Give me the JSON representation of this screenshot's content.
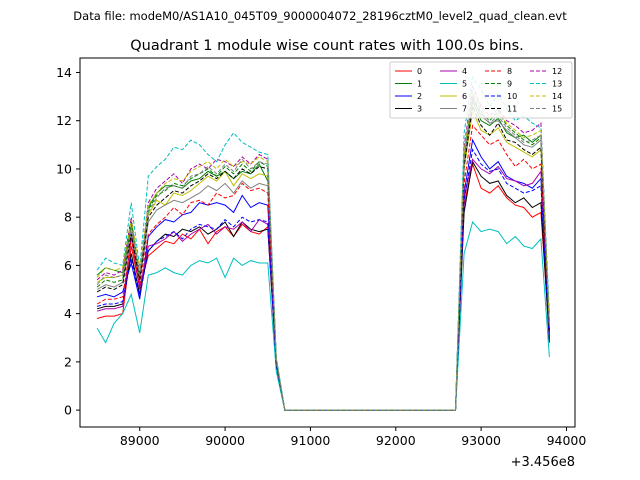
{
  "chart_data": {
    "type": "line",
    "suptitle": "Data file: modeM0/AS1A10_045T09_9000004072_28196cztM0_level2_quad_clean.evt",
    "title": "Quadrant 1 module wise count rates with 100.0s bins.",
    "xlabel": "",
    "ylabel": "",
    "offset_text": "+3.456e8",
    "xlim": [
      88300,
      94100
    ],
    "ylim": [
      -0.7,
      14.6
    ],
    "xticks": [
      89000,
      90000,
      91000,
      92000,
      93000,
      94000
    ],
    "yticks": [
      0,
      2,
      4,
      6,
      8,
      10,
      12,
      14
    ],
    "grid": false,
    "legend": {
      "placement": "top-right",
      "columns": 4
    },
    "x_seg1": [
      88500,
      88600,
      88700,
      88800,
      88900,
      89000,
      89100,
      89200,
      89300,
      89400,
      89500,
      89600,
      89700,
      89800,
      89900,
      90000,
      90100,
      90200,
      90300,
      90400,
      90500,
      90600,
      90700,
      90800
    ],
    "x_seg2": [
      92700,
      92800,
      92900,
      93000,
      93100,
      93200,
      93300,
      93400,
      93500,
      93600,
      93700,
      93800
    ],
    "series": [
      {
        "name": "0",
        "color": "#ff0000",
        "dash": false,
        "seg1": [
          3.8,
          3.9,
          3.9,
          4.0,
          6.8,
          5.1,
          6.4,
          6.7,
          7.0,
          6.9,
          7.3,
          7.1,
          7.5,
          6.9,
          7.4,
          7.6,
          7.2,
          7.7,
          7.4,
          7.3,
          7.6,
          2.0,
          0,
          0
        ],
        "seg2": [
          0,
          8.5,
          10.2,
          9.2,
          9.0,
          9.3,
          8.8,
          8.5,
          8.4,
          8.0,
          8.2,
          3.1
        ]
      },
      {
        "name": "1",
        "color": "#008000",
        "dash": false,
        "seg1": [
          5.6,
          5.9,
          5.8,
          5.7,
          7.9,
          5.4,
          8.4,
          9.0,
          9.3,
          9.3,
          9.2,
          9.5,
          9.6,
          9.9,
          9.7,
          9.9,
          9.6,
          9.9,
          9.8,
          10.2,
          9.5,
          2.0,
          0,
          0
        ],
        "seg2": [
          0,
          10.4,
          12.8,
          12.0,
          11.8,
          12.1,
          11.5,
          11.3,
          11.4,
          11.1,
          11.4,
          3.5
        ]
      },
      {
        "name": "2",
        "color": "#0000ff",
        "dash": false,
        "seg1": [
          4.7,
          4.8,
          4.7,
          4.9,
          6.1,
          4.6,
          7.2,
          7.6,
          7.9,
          7.8,
          8.1,
          8.2,
          8.6,
          8.5,
          8.6,
          8.5,
          8.2,
          8.9,
          8.4,
          8.6,
          8.5,
          1.9,
          0,
          0
        ],
        "seg2": [
          0,
          9.0,
          11.2,
          10.5,
          10.0,
          10.3,
          9.7,
          9.5,
          9.4,
          9.2,
          9.6,
          3.0
        ]
      },
      {
        "name": "3",
        "color": "#000000",
        "dash": false,
        "seg1": [
          4.2,
          4.3,
          4.3,
          4.4,
          6.5,
          4.8,
          6.6,
          7.0,
          7.3,
          7.2,
          7.5,
          7.4,
          7.6,
          7.3,
          7.5,
          7.8,
          7.2,
          7.8,
          7.5,
          7.4,
          7.5,
          1.9,
          0,
          0
        ],
        "seg2": [
          0,
          8.2,
          10.3,
          9.7,
          9.4,
          9.5,
          8.9,
          8.6,
          8.8,
          8.4,
          8.6,
          2.8
        ]
      },
      {
        "name": "4",
        "color": "#aa00aa",
        "dash": false,
        "seg1": [
          4.1,
          4.2,
          4.2,
          4.3,
          7.2,
          5.0,
          6.8,
          6.9,
          7.1,
          7.4,
          7.0,
          7.3,
          7.5,
          7.7,
          7.3,
          7.6,
          7.5,
          7.8,
          7.4,
          7.9,
          7.7,
          2.0,
          0,
          0
        ],
        "seg2": [
          0,
          8.8,
          10.4,
          10.0,
          9.8,
          10.1,
          9.6,
          9.5,
          9.3,
          9.4,
          9.9,
          3.2
        ]
      },
      {
        "name": "5",
        "color": "#00bfbf",
        "dash": false,
        "seg1": [
          3.4,
          2.8,
          3.6,
          4.0,
          4.8,
          3.2,
          5.6,
          5.7,
          5.9,
          5.7,
          5.6,
          6.0,
          6.2,
          6.1,
          6.3,
          5.5,
          6.3,
          6.0,
          6.2,
          6.1,
          6.1,
          1.6,
          0,
          0
        ],
        "seg2": [
          0,
          6.5,
          7.8,
          7.4,
          7.5,
          7.4,
          6.9,
          7.2,
          6.8,
          6.7,
          7.1,
          2.2
        ]
      },
      {
        "name": "6",
        "color": "#bfbf00",
        "dash": false,
        "seg1": [
          5.3,
          5.5,
          5.5,
          5.6,
          7.6,
          5.5,
          8.1,
          8.7,
          8.5,
          9.0,
          8.9,
          9.1,
          9.4,
          9.7,
          9.5,
          9.9,
          9.3,
          9.8,
          9.6,
          9.8,
          9.7,
          2.1,
          0,
          0
        ],
        "seg2": [
          0,
          10.0,
          12.4,
          11.6,
          11.4,
          11.7,
          11.1,
          10.9,
          10.7,
          10.5,
          10.8,
          3.4
        ]
      },
      {
        "name": "7",
        "color": "#808080",
        "dash": false,
        "seg1": [
          5.0,
          5.2,
          5.1,
          5.3,
          7.4,
          5.3,
          7.8,
          8.3,
          8.5,
          8.7,
          8.6,
          8.8,
          9.0,
          9.3,
          9.1,
          9.4,
          9.0,
          9.5,
          9.2,
          9.4,
          9.3,
          2.0,
          0,
          0
        ],
        "seg2": [
          0,
          10.2,
          12.9,
          12.2,
          11.9,
          12.0,
          11.6,
          11.3,
          11.0,
          10.9,
          11.2,
          3.4
        ]
      },
      {
        "name": "8",
        "color": "#ff0000",
        "dash": true,
        "seg1": [
          4.4,
          4.6,
          4.6,
          4.7,
          7.1,
          5.2,
          7.3,
          7.7,
          8.0,
          8.4,
          8.1,
          8.6,
          8.7,
          8.5,
          9.0,
          8.8,
          8.9,
          9.4,
          9.1,
          9.2,
          9.0,
          2.0,
          0,
          0
        ],
        "seg2": [
          0,
          9.4,
          11.8,
          11.4,
          11.0,
          11.2,
          10.6,
          10.1,
          10.4,
          10.0,
          10.2,
          3.2
        ]
      },
      {
        "name": "9",
        "color": "#008000",
        "dash": true,
        "seg1": [
          5.1,
          5.4,
          5.3,
          5.4,
          7.7,
          5.6,
          8.3,
          8.9,
          9.1,
          9.4,
          9.3,
          9.6,
          9.8,
          10.0,
          9.7,
          10.1,
          9.8,
          10.2,
          9.9,
          10.3,
          10.1,
          2.1,
          0,
          0
        ],
        "seg2": [
          0,
          10.6,
          13.0,
          12.3,
          12.0,
          12.4,
          11.8,
          11.5,
          11.2,
          11.0,
          11.3,
          3.6
        ]
      },
      {
        "name": "10",
        "color": "#0000ff",
        "dash": true,
        "seg1": [
          4.3,
          4.4,
          4.4,
          4.5,
          6.3,
          4.7,
          6.6,
          7.0,
          7.2,
          7.4,
          7.1,
          7.5,
          7.7,
          7.6,
          7.5,
          7.9,
          7.6,
          8.0,
          7.8,
          7.9,
          7.8,
          1.9,
          0,
          0
        ],
        "seg2": [
          0,
          8.7,
          10.8,
          10.2,
          9.9,
          10.0,
          9.4,
          9.2,
          9.0,
          9.1,
          9.3,
          2.9
        ]
      },
      {
        "name": "11",
        "color": "#000000",
        "dash": true,
        "seg1": [
          4.9,
          5.1,
          5.0,
          5.2,
          7.3,
          5.4,
          8.0,
          8.5,
          8.8,
          9.1,
          9.0,
          9.3,
          9.5,
          9.8,
          9.6,
          9.9,
          9.6,
          10.0,
          9.8,
          10.1,
          10.0,
          2.0,
          0,
          0
        ],
        "seg2": [
          0,
          10.1,
          12.6,
          11.8,
          11.4,
          11.9,
          11.2,
          11.1,
          10.8,
          10.6,
          10.9,
          3.3
        ]
      },
      {
        "name": "12",
        "color": "#aa00aa",
        "dash": true,
        "seg1": [
          5.4,
          5.7,
          5.6,
          5.8,
          8.0,
          5.7,
          8.6,
          9.2,
          9.5,
          9.8,
          9.4,
          10.0,
          10.2,
          10.0,
          10.4,
          10.3,
          10.1,
          10.5,
          10.2,
          10.6,
          10.4,
          2.1,
          0,
          0
        ],
        "seg2": [
          0,
          10.9,
          13.4,
          12.6,
          12.2,
          12.5,
          12.0,
          11.8,
          11.5,
          11.6,
          11.9,
          3.6
        ]
      },
      {
        "name": "13",
        "color": "#00bfbf",
        "dash": true,
        "seg1": [
          5.8,
          6.3,
          6.1,
          6.0,
          8.6,
          5.9,
          9.7,
          10.1,
          10.4,
          10.9,
          10.8,
          11.2,
          11.0,
          10.6,
          10.3,
          11.0,
          11.5,
          11.1,
          10.9,
          10.7,
          10.6,
          2.2,
          0,
          0
        ],
        "seg2": [
          0,
          11.5,
          13.8,
          13.3,
          12.6,
          13.1,
          12.5,
          12.0,
          12.2,
          11.9,
          11.7,
          4.0
        ]
      },
      {
        "name": "14",
        "color": "#bfbf00",
        "dash": true,
        "seg1": [
          5.5,
          5.9,
          5.8,
          5.9,
          7.9,
          5.8,
          8.5,
          9.0,
          9.4,
          9.6,
          9.5,
          9.9,
          10.1,
          10.3,
          10.0,
          10.4,
          10.1,
          10.3,
          10.2,
          10.5,
          10.3,
          2.1,
          0,
          0
        ],
        "seg2": [
          0,
          10.7,
          13.2,
          12.5,
          12.1,
          12.3,
          11.9,
          11.6,
          11.3,
          11.4,
          11.6,
          3.5
        ]
      },
      {
        "name": "15",
        "color": "#808080",
        "dash": true,
        "seg1": [
          5.2,
          5.6,
          5.5,
          5.6,
          7.6,
          5.6,
          8.2,
          8.8,
          9.2,
          9.3,
          9.2,
          9.7,
          9.8,
          10.1,
          9.8,
          10.2,
          9.9,
          10.4,
          10.0,
          10.3,
          10.2,
          2.1,
          0,
          0
        ],
        "seg2": [
          0,
          10.4,
          13.1,
          12.4,
          11.9,
          12.2,
          11.7,
          11.4,
          11.1,
          11.2,
          11.4,
          3.5
        ]
      }
    ]
  }
}
